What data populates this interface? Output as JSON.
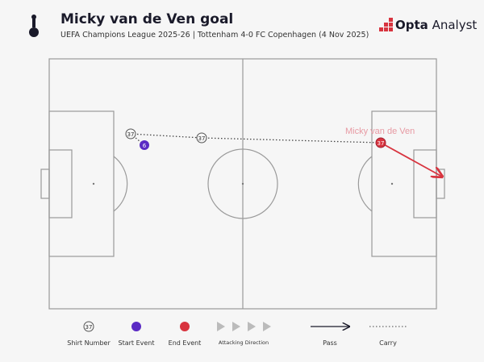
{
  "header": {
    "title": "Micky van de Ven goal",
    "subtitle": "UEFA Champions League 2025-26 | Tottenham 4-0 FC Copenhagen (4 Nov 2025)",
    "brand_bold": "Opta",
    "brand_rest": "Analyst"
  },
  "chart_data": {
    "type": "pitch-event-map",
    "annotation": "Micky van de Ven",
    "events": [
      {
        "kind": "carry",
        "from": "A",
        "to": "B"
      },
      {
        "kind": "carry",
        "from": "B",
        "to": "C"
      },
      {
        "kind": "shot",
        "from": "C",
        "to": "goal"
      }
    ],
    "markers": [
      {
        "id": "A",
        "label": "37",
        "type": "shirt"
      },
      {
        "id": "S",
        "label": "6",
        "type": "start"
      },
      {
        "id": "B",
        "label": "37",
        "type": "shirt"
      },
      {
        "id": "C",
        "label": "37",
        "type": "end"
      }
    ],
    "colors": {
      "start": "#5b2bc4",
      "end": "#d8343f",
      "pitch_line": "#9a9a9a",
      "annotation": "#e79aa3"
    }
  },
  "legend": {
    "shirt_sample": "37",
    "shirt": "Shirt Number",
    "start": "Start Event",
    "end": "End Event",
    "direction": "Attacking Direction",
    "pass": "Pass",
    "carry": "Carry"
  }
}
